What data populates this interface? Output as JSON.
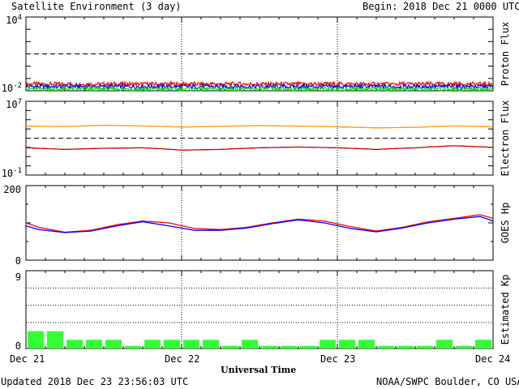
{
  "header": {
    "title": "Satellite Environment (3 day)",
    "begin_label": "Begin:",
    "begin_value": "2018 Dec 21 0000 UTC"
  },
  "footer": {
    "updated": "Updated 2018 Dec 23 23:56:03 UTC",
    "source": "NOAA/SWPC Boulder, CO USA"
  },
  "colors": {
    "frame": "#000000",
    "red": "#ff0000",
    "blue": "#0000ff",
    "green": "#00e000",
    "orange": "#ff9900",
    "dark_red": "#c00000",
    "kp_bar": "#33ff33"
  },
  "chart_data": [
    {
      "type": "line",
      "panel": "proton",
      "ylabel": "Proton Flux",
      "yscale": "log",
      "ylim": [
        0.01,
        10000
      ],
      "y_ticks": [
        {
          "base": "10",
          "exp": "4"
        },
        {
          "base": "10",
          "exp": "-2"
        }
      ],
      "threshold": 10,
      "x_ticks": [
        "Dec 21",
        "Dec 22",
        "Dec 23",
        "Dec 24"
      ],
      "series": [
        {
          "color": "red",
          "level": 0.035
        },
        {
          "color": "blue",
          "level": 0.022
        },
        {
          "color": "green",
          "level": 0.014
        }
      ]
    },
    {
      "type": "line",
      "panel": "electron",
      "ylabel": "Electron Flux",
      "yscale": "log",
      "ylim": [
        0.1,
        10000000
      ],
      "y_ticks": [
        {
          "base": "10",
          "exp": "7"
        },
        {
          "base": "10",
          "exp": "-1"
        }
      ],
      "threshold": 1000,
      "series": [
        {
          "color": "orange",
          "x": [
            0,
            6,
            12,
            18,
            24,
            30,
            36,
            42,
            48,
            54,
            60,
            66,
            72
          ],
          "y": [
            20000,
            18000,
            25000,
            21000,
            16000,
            19000,
            23000,
            20000,
            17000,
            13000,
            15000,
            21000,
            17000
          ]
        },
        {
          "color": "dark_red",
          "x": [
            0,
            6,
            12,
            18,
            24,
            30,
            36,
            42,
            48,
            54,
            60,
            66,
            72
          ],
          "y": [
            90,
            60,
            80,
            90,
            50,
            60,
            90,
            110,
            90,
            60,
            90,
            150,
            100
          ]
        }
      ]
    },
    {
      "type": "line",
      "panel": "goes_hp",
      "ylabel": "GOES Hp",
      "ylim": [
        0,
        200
      ],
      "y_ticks": [
        "200",
        "0"
      ],
      "series": [
        {
          "color": "red",
          "x": [
            0,
            2,
            6,
            10,
            14,
            18,
            22,
            26,
            30,
            34,
            38,
            42,
            46,
            50,
            54,
            58,
            62,
            66,
            70,
            72
          ],
          "y": [
            100,
            88,
            75,
            80,
            95,
            105,
            100,
            85,
            82,
            88,
            100,
            110,
            105,
            90,
            78,
            88,
            103,
            112,
            122,
            112
          ]
        },
        {
          "color": "blue",
          "x": [
            0,
            2,
            6,
            10,
            14,
            18,
            22,
            26,
            30,
            34,
            38,
            42,
            46,
            50,
            54,
            58,
            62,
            66,
            70,
            72
          ],
          "y": [
            92,
            82,
            74,
            78,
            92,
            103,
            92,
            80,
            80,
            86,
            98,
            108,
            100,
            85,
            76,
            86,
            100,
            110,
            117,
            105
          ]
        }
      ]
    },
    {
      "type": "bar",
      "panel": "kp",
      "ylabel": "Estimated Kp",
      "ylim": [
        0,
        9
      ],
      "y_ticks": [
        "9",
        "0"
      ],
      "xlabel": "Universal Time",
      "values": [
        2,
        2,
        1,
        1,
        1,
        0.3,
        1,
        1,
        1,
        1,
        0.3,
        1,
        0.3,
        0.3,
        0.3,
        1,
        1,
        1,
        0.3,
        0.3,
        0.3,
        1,
        0.3,
        1
      ]
    }
  ]
}
